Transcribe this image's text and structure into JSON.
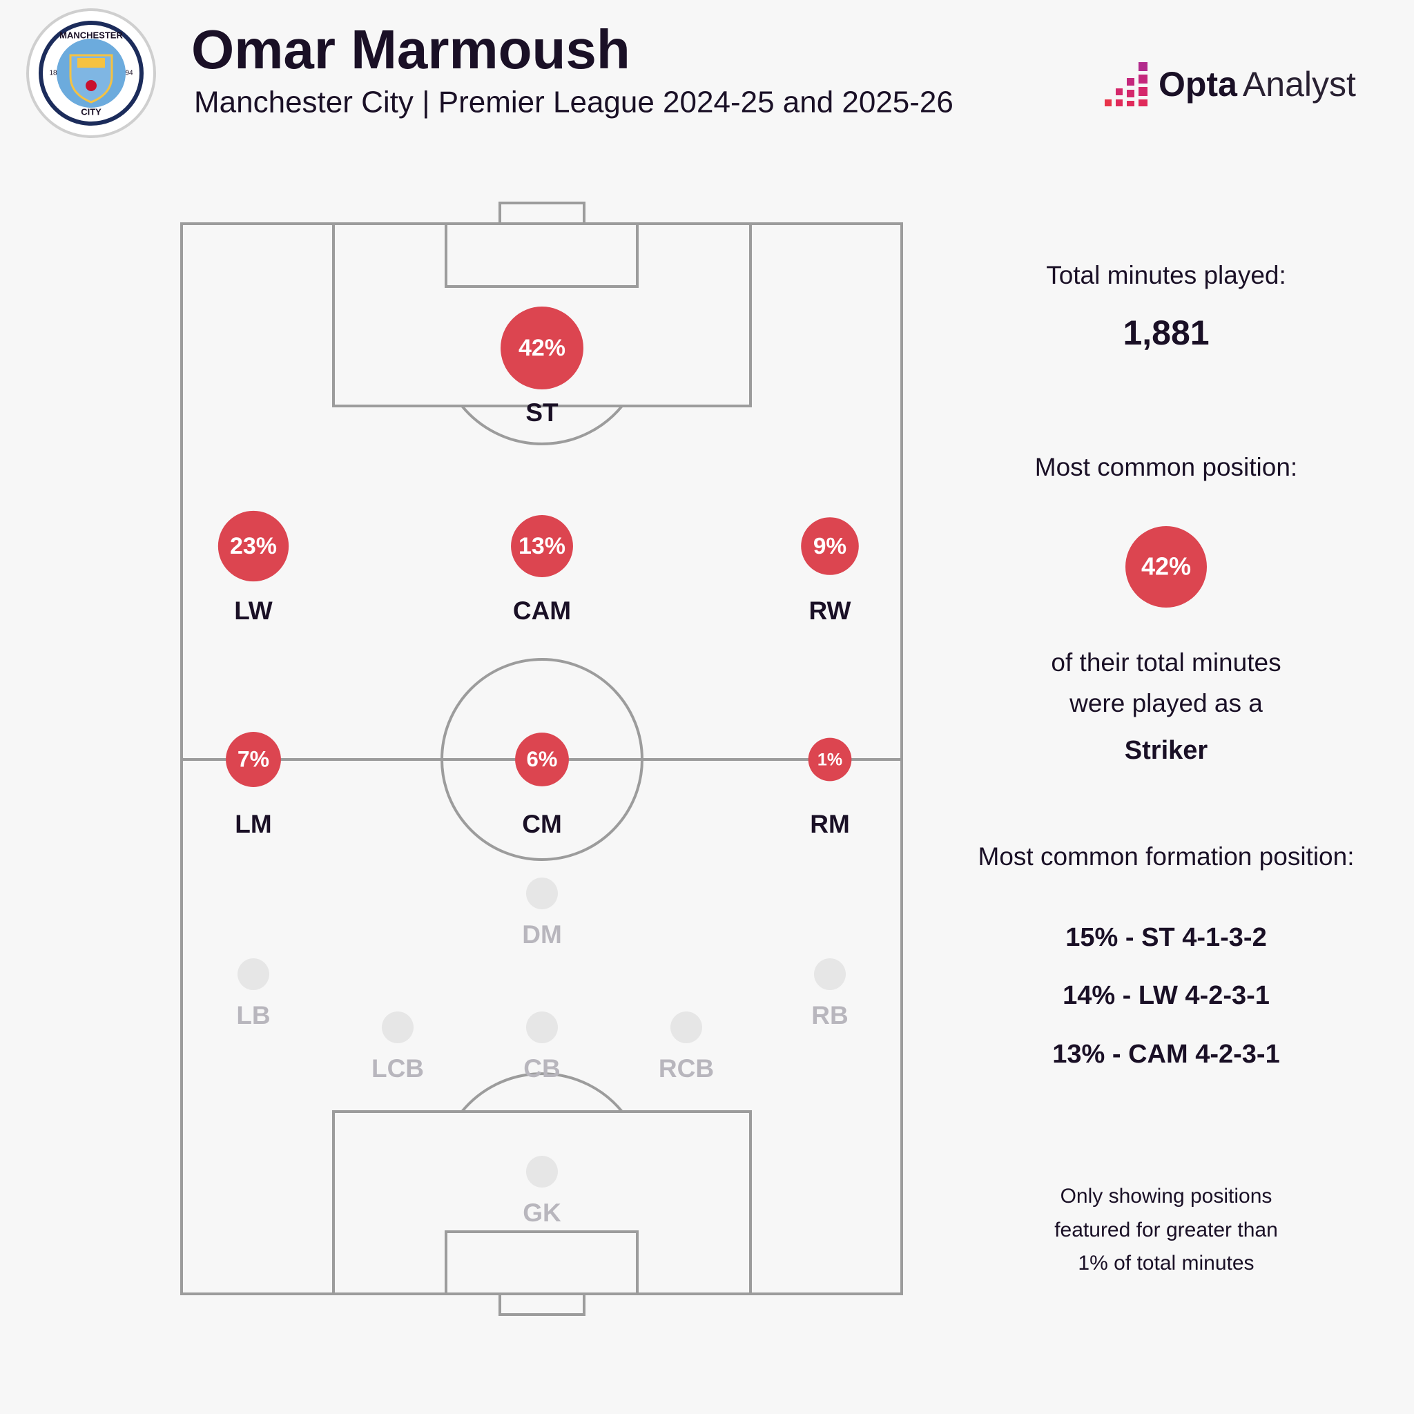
{
  "header": {
    "title": "Omar Marmoush",
    "subtitle": "Manchester City | Premier League 2024-25 and 2025-26"
  },
  "badge": {
    "top": "MANCHESTER",
    "bottom": "CITY",
    "year_left": "18",
    "year_right": "94"
  },
  "logo": {
    "brand": "Opta",
    "product": "Analyst"
  },
  "pitch": {
    "positions": [
      {
        "name": "ST",
        "value": 42,
        "value_label": "42%"
      },
      {
        "name": "LW",
        "value": 23,
        "value_label": "23%"
      },
      {
        "name": "CAM",
        "value": 13,
        "value_label": "13%"
      },
      {
        "name": "RW",
        "value": 9,
        "value_label": "9%"
      },
      {
        "name": "LM",
        "value": 7,
        "value_label": "7%"
      },
      {
        "name": "CM",
        "value": 6,
        "value_label": "6%"
      },
      {
        "name": "RM",
        "value": 1,
        "value_label": "1%"
      },
      {
        "name": "DM"
      },
      {
        "name": "LB"
      },
      {
        "name": "RB"
      },
      {
        "name": "LCB"
      },
      {
        "name": "CB"
      },
      {
        "name": "RCB"
      },
      {
        "name": "GK"
      }
    ]
  },
  "panel": {
    "minutes_label": "Total minutes played:",
    "minutes": "1,881",
    "position_label": "Most common position:",
    "position_share": "42%",
    "position_text": [
      "of their total minutes",
      "were played as a"
    ],
    "position_name": "Striker",
    "formation_label": "Most common formation position:",
    "formations": [
      "15% - ST 4-1-3-2",
      "14% - LW 4-2-3-1",
      "13% - CAM 4-2-3-1"
    ],
    "footnote": [
      "Only showing positions",
      "featured for greater than",
      "1% of total minutes"
    ]
  }
}
